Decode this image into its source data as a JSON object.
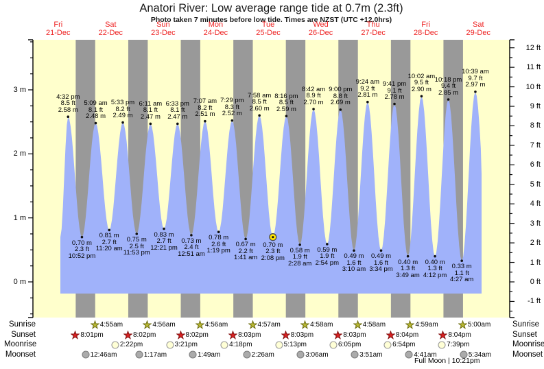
{
  "title": "Anatori River: Low average range tide at 0.7m (2.3ft)",
  "subtitle": "Photo taken 7 minutes before low tide. Times are NZST (UTC +12.0hrs)",
  "colors": {
    "day_bg": "#ffffcc",
    "night_band": "#999999",
    "tide_area": "#a0b2fa",
    "date_text": "#ee2222",
    "axis_text": "#000000",
    "sunrise_star_fill": "#b8b832",
    "sunrise_star_stroke": "#6f6f14",
    "sunset_star_fill": "#d92121",
    "sunset_star_stroke": "#7e0e0e",
    "moonrise_disc_fill": "#ffffd6",
    "moonrise_disc_stroke": "#9a9a9a",
    "moonset_disc_fill": "#ababab",
    "moonset_disc_stroke": "#7d7d7d",
    "photo_marker_fill": "#ffe400",
    "photo_marker_stroke": "#4a4a4a"
  },
  "chart_data": {
    "type": "area",
    "title": "Anatori River: Low average range tide at 0.7m (2.3ft)",
    "subtitle": "Photo taken 7 minutes before low tide. Times are NZST (UTC +12.0hrs)",
    "x_unit": "hours since Fri 21-Dec 00:00",
    "y_unit_left": "m",
    "y_unit_right": "ft",
    "ylim_m": [
      -0.56,
      3.78
    ],
    "grid": false,
    "legend": false,
    "days": [
      {
        "name": "Fri",
        "date": "21-Dec"
      },
      {
        "name": "Sat",
        "date": "22-Dec"
      },
      {
        "name": "Sun",
        "date": "23-Dec"
      },
      {
        "name": "Mon",
        "date": "24-Dec"
      },
      {
        "name": "Tue",
        "date": "25-Dec"
      },
      {
        "name": "Wed",
        "date": "26-Dec"
      },
      {
        "name": "Thu",
        "date": "27-Dec"
      },
      {
        "name": "Fri",
        "date": "28-Dec"
      },
      {
        "name": "Sat",
        "date": "29-Dec"
      }
    ],
    "m_axis_labels": [
      {
        "v": 0,
        "label": "0 m"
      },
      {
        "v": 1,
        "label": "1 m"
      },
      {
        "v": 2,
        "label": "2 m"
      },
      {
        "v": 3,
        "label": "3 m"
      }
    ],
    "ft_axis_labels": [
      {
        "v": -1,
        "label": "-1 ft"
      },
      {
        "v": 0,
        "label": "0 ft"
      },
      {
        "v": 1,
        "label": "1 ft"
      },
      {
        "v": 2,
        "label": "2 ft"
      },
      {
        "v": 3,
        "label": "3 ft"
      },
      {
        "v": 4,
        "label": "4 ft"
      },
      {
        "v": 5,
        "label": "5 ft"
      },
      {
        "v": 6,
        "label": "6 ft"
      },
      {
        "v": 7,
        "label": "7 ft"
      },
      {
        "v": 8,
        "label": "8 ft"
      },
      {
        "v": 9,
        "label": "9 ft"
      },
      {
        "v": 10,
        "label": "10 ft"
      },
      {
        "v": 11,
        "label": "11 ft"
      },
      {
        "v": 12,
        "label": "12 ft"
      }
    ],
    "tides": [
      {
        "kind": "high",
        "time": "4:32 pm",
        "ft": "8.5 ft",
        "m": "2.58 m",
        "h": 2.58,
        "t": 16.5333
      },
      {
        "kind": "low",
        "time": "10:52 pm",
        "ft": "2.3 ft",
        "m": "0.70 m",
        "h": 0.7,
        "t": 22.8667
      },
      {
        "kind": "high",
        "time": "5:09 am",
        "ft": "8.1 ft",
        "m": "2.48 m",
        "h": 2.48,
        "t": 29.15
      },
      {
        "kind": "low",
        "time": "11:20 am",
        "ft": "2.7 ft",
        "m": "0.81 m",
        "h": 0.81,
        "t": 35.3333
      },
      {
        "kind": "high",
        "time": "5:33 pm",
        "ft": "8.2 ft",
        "m": "2.49 m",
        "h": 2.49,
        "t": 41.55
      },
      {
        "kind": "low",
        "time": "11:53 pm",
        "ft": "2.5 ft",
        "m": "0.75 m",
        "h": 0.75,
        "t": 47.8833
      },
      {
        "kind": "high",
        "time": "6:11 am",
        "ft": "8.1 ft",
        "m": "2.47 m",
        "h": 2.47,
        "t": 54.1833
      },
      {
        "kind": "low",
        "time": "12:21 pm",
        "ft": "2.7 ft",
        "m": "0.83 m",
        "h": 0.83,
        "t": 60.35
      },
      {
        "kind": "high",
        "time": "6:33 pm",
        "ft": "8.1 ft",
        "m": "2.47 m",
        "h": 2.47,
        "t": 66.55
      },
      {
        "kind": "low",
        "time": "12:51 am",
        "ft": "2.4 ft",
        "m": "0.73 m",
        "h": 0.73,
        "t": 72.85
      },
      {
        "kind": "high",
        "time": "7:07 am",
        "ft": "8.2 ft",
        "m": "2.51 m",
        "h": 2.51,
        "t": 79.1167
      },
      {
        "kind": "low",
        "time": "1:19 pm",
        "ft": "2.6 ft",
        "m": "0.78 m",
        "h": 0.78,
        "t": 85.3167
      },
      {
        "kind": "high",
        "time": "7:29 pm",
        "ft": "8.3 ft",
        "m": "2.52 m",
        "h": 2.52,
        "t": 91.4833
      },
      {
        "kind": "low",
        "time": "1:41 am",
        "ft": "2.2 ft",
        "m": "0.67 m",
        "h": 0.67,
        "t": 97.6833
      },
      {
        "kind": "high",
        "time": "7:58 am",
        "ft": "8.5 ft",
        "m": "2.60 m",
        "h": 2.6,
        "t": 103.9667
      },
      {
        "kind": "low",
        "time": "2:08 pm",
        "ft": "2.3 ft",
        "m": "0.70 m",
        "h": 0.7,
        "t": 110.1333,
        "marked": true
      },
      {
        "kind": "high",
        "time": "8:16 pm",
        "ft": "8.5 ft",
        "m": "2.59 m",
        "h": 2.59,
        "t": 116.2667
      },
      {
        "kind": "low",
        "time": "2:28 am",
        "ft": "1.9 ft",
        "m": "0.58 m",
        "h": 0.58,
        "t": 122.4667
      },
      {
        "kind": "high",
        "time": "8:42 am",
        "ft": "8.9 ft",
        "m": "2.70 m",
        "h": 2.7,
        "t": 128.7
      },
      {
        "kind": "low",
        "time": "2:54 pm",
        "ft": "1.9 ft",
        "m": "0.59 m",
        "h": 0.59,
        "t": 134.9
      },
      {
        "kind": "high",
        "time": "9:00 pm",
        "ft": "8.8 ft",
        "m": "2.69 m",
        "h": 2.69,
        "t": 141.0
      },
      {
        "kind": "low",
        "time": "3:10 am",
        "ft": "1.6 ft",
        "m": "0.49 m",
        "h": 0.49,
        "t": 147.1667
      },
      {
        "kind": "high",
        "time": "9:24 am",
        "ft": "9.2 ft",
        "m": "2.81 m",
        "h": 2.81,
        "t": 153.4
      },
      {
        "kind": "low",
        "time": "3:34 pm",
        "ft": "1.6 ft",
        "m": "0.49 m",
        "h": 0.49,
        "t": 159.5667
      },
      {
        "kind": "high",
        "time": "9:41 pm",
        "ft": "9.1 ft",
        "m": "2.78 m",
        "h": 2.78,
        "t": 165.6833
      },
      {
        "kind": "low",
        "time": "3:49 am",
        "ft": "1.3 ft",
        "m": "0.40 m",
        "h": 0.4,
        "t": 171.8167
      },
      {
        "kind": "high",
        "time": "10:02 am",
        "ft": "9.5 ft",
        "m": "2.90 m",
        "h": 2.9,
        "t": 178.0333
      },
      {
        "kind": "low",
        "time": "4:12 pm",
        "ft": "1.3 ft",
        "m": "0.40 m",
        "h": 0.4,
        "t": 184.2
      },
      {
        "kind": "high",
        "time": "10:18 pm",
        "ft": "9.4 ft",
        "m": "2.85 m",
        "h": 2.85,
        "t": 190.3
      },
      {
        "kind": "low",
        "time": "4:27 am",
        "ft": "1.1 ft",
        "m": "0.33 m",
        "h": 0.33,
        "t": 196.45
      },
      {
        "kind": "high",
        "time": "10:39 am",
        "ft": "9.7 ft",
        "m": "2.97 m",
        "h": 2.97,
        "t": 202.65
      }
    ],
    "night_bands_t": [
      [
        20.0167,
        28.9167
      ],
      [
        44.0333,
        52.9333
      ],
      [
        68.0333,
        76.9333
      ],
      [
        92.05,
        100.95
      ],
      [
        116.05,
        124.9667
      ],
      [
        140.05,
        148.9667
      ],
      [
        164.0667,
        172.9833
      ],
      [
        188.0667,
        197.0
      ]
    ],
    "astro": {
      "rows": [
        {
          "label": "Sunrise",
          "icon": "sunrise-star-icon",
          "events": [
            {
              "time": "4:55am",
              "t": 28.9167
            },
            {
              "time": "4:56am",
              "t": 52.9333
            },
            {
              "time": "4:56am",
              "t": 76.9333
            },
            {
              "time": "4:57am",
              "t": 100.95
            },
            {
              "time": "4:58am",
              "t": 124.9667
            },
            {
              "time": "4:58am",
              "t": 148.9667
            },
            {
              "time": "4:59am",
              "t": 172.9833
            },
            {
              "time": "5:00am",
              "t": 197.0
            }
          ]
        },
        {
          "label": "Sunset",
          "icon": "sunset-star-icon",
          "events": [
            {
              "time": "8:01pm",
              "t": 20.0167
            },
            {
              "time": "8:02pm",
              "t": 44.0333
            },
            {
              "time": "8:02pm",
              "t": 68.0333
            },
            {
              "time": "8:03pm",
              "t": 92.05
            },
            {
              "time": "8:03pm",
              "t": 116.05
            },
            {
              "time": "8:03pm",
              "t": 140.05
            },
            {
              "time": "8:04pm",
              "t": 164.0667
            },
            {
              "time": "8:04pm",
              "t": 188.0667
            }
          ]
        },
        {
          "label": "Moonrise",
          "icon": "moonrise-circle-icon",
          "events": [
            {
              "time": "2:22pm",
              "t": 38.3667
            },
            {
              "time": "3:21pm",
              "t": 63.35
            },
            {
              "time": "4:18pm",
              "t": 88.3
            },
            {
              "time": "5:13pm",
              "t": 113.2167
            },
            {
              "time": "6:05pm",
              "t": 138.0833
            },
            {
              "time": "6:54pm",
              "t": 162.9
            },
            {
              "time": "7:39pm",
              "t": 187.65
            }
          ]
        },
        {
          "label": "Moonset",
          "icon": "moonset-circle-icon",
          "events": [
            {
              "time": "12:46am",
              "t": 24.7667
            },
            {
              "time": "1:17am",
              "t": 49.2833
            },
            {
              "time": "1:49am",
              "t": 73.8167
            },
            {
              "time": "2:26am",
              "t": 98.4333
            },
            {
              "time": "3:06am",
              "t": 123.1
            },
            {
              "time": "3:51am",
              "t": 147.85
            },
            {
              "time": "4:41am",
              "t": 172.6833
            },
            {
              "time": "5:34am",
              "t": 197.5667
            }
          ]
        }
      ],
      "footnote": "Full Moon | 10:21pm"
    }
  }
}
